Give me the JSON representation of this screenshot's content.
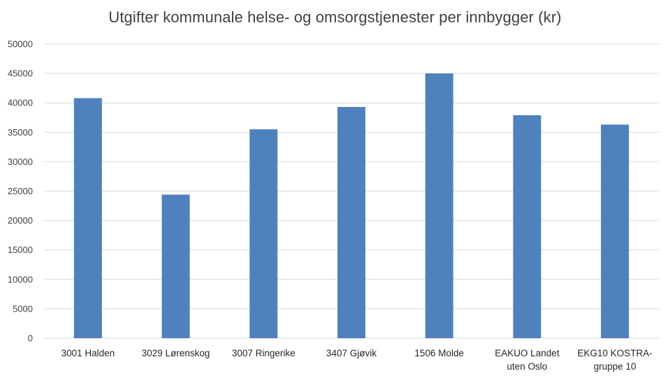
{
  "chart_data": {
    "type": "bar",
    "title": "Utgifter kommunale helse- og omsorgstjenester per innbygger (kr)",
    "categories": [
      [
        "3001 Halden"
      ],
      [
        "3029 Lørenskog"
      ],
      [
        "3007 Ringerike"
      ],
      [
        "3407 Gjøvik"
      ],
      [
        "1506 Molde"
      ],
      [
        "EAKUO Landet",
        "uten Oslo"
      ],
      [
        "EKG10 KOSTRA-",
        "gruppe 10"
      ]
    ],
    "values": [
      40800,
      24400,
      35500,
      39300,
      45000,
      37900,
      36300
    ],
    "ylim": [
      0,
      50000
    ],
    "yticks": [
      "0",
      "5000",
      "10000",
      "15000",
      "20000",
      "25000",
      "30000",
      "35000",
      "40000",
      "45000",
      "50000"
    ],
    "grid": true,
    "bar_color": "#4f81bd",
    "grid_color": "#d9d9d9"
  }
}
